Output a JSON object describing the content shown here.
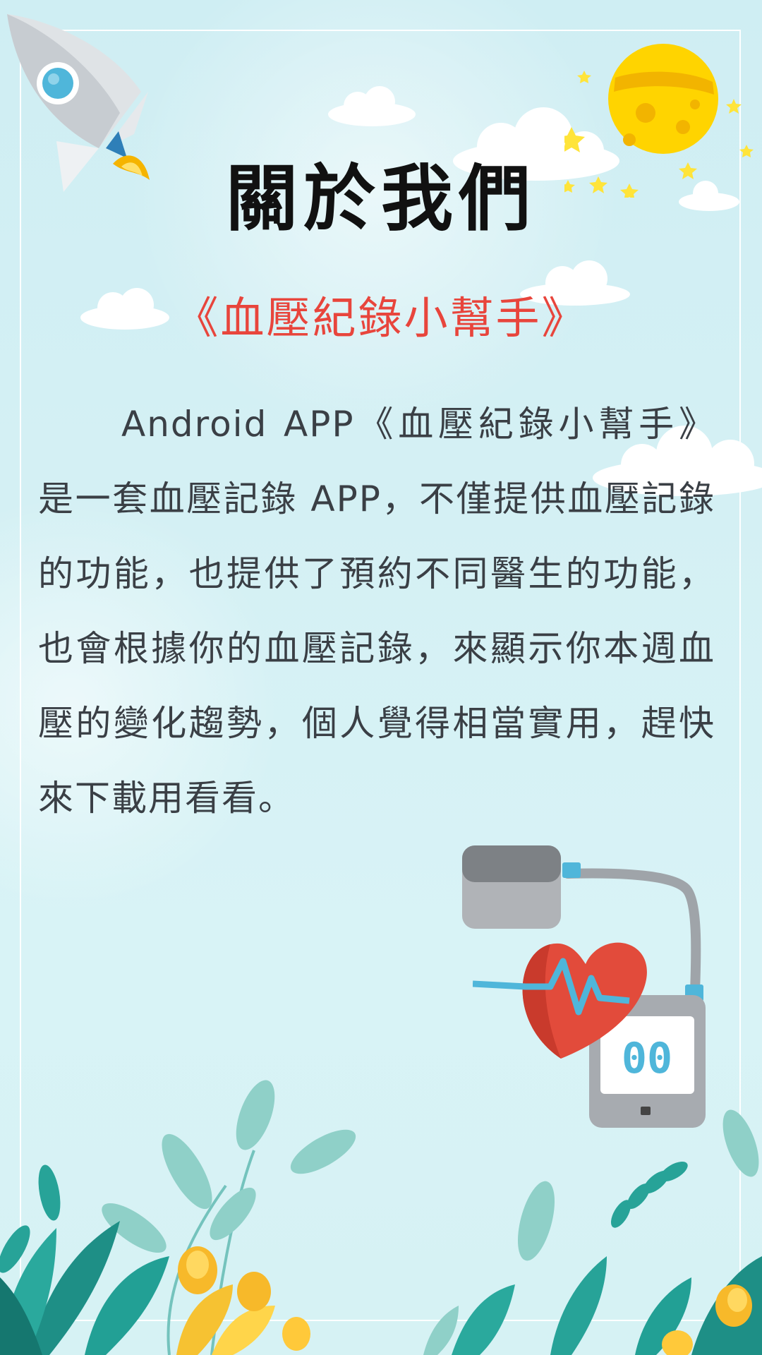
{
  "page": {
    "title": "關於我們",
    "subtitle": "《血壓紀錄小幫手》",
    "description": "Android APP《血壓紀錄小幫手》是一套血壓記錄 APP，不僅提供血壓記錄的功能，也提供了預約不同醫生的功能，也會根據你的血壓記錄，來顯示你本週血壓的變化趨勢，個人覺得相當實用，趕快來下載用看看。"
  },
  "colors": {
    "background": "#d4f0f4",
    "title": "#111111",
    "subtitle": "#e8453c",
    "body_text": "#3a3f45"
  },
  "icons": {
    "rocket": "rocket-icon",
    "moon": "moon-icon",
    "blood_pressure_monitor": "blood-pressure-monitor-icon",
    "heart": "heart-icon"
  }
}
